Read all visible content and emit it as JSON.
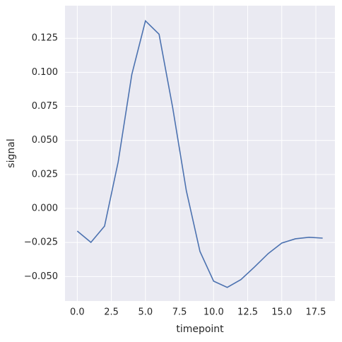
{
  "chart_data": {
    "type": "line",
    "x_label": "timepoint",
    "y_label": "signal",
    "x": [
      0,
      1,
      2,
      3,
      4,
      5,
      6,
      7,
      8,
      9,
      10,
      11,
      12,
      13,
      14,
      15,
      16,
      17,
      18
    ],
    "series": [
      {
        "color": "#4c72b0",
        "values": [
          -0.0166,
          -0.0249,
          -0.013,
          0.0342,
          0.0984,
          0.1378,
          0.128,
          0.074,
          0.013,
          -0.0316,
          -0.0534,
          -0.058,
          -0.0523,
          -0.043,
          -0.0332,
          -0.0254,
          -0.0223,
          -0.0212,
          -0.0218
        ]
      }
    ],
    "xlim": [
      -0.9,
      18.9
    ],
    "ylim": [
      -0.068,
      0.149
    ],
    "xticks": [
      {
        "value": 0,
        "label": "0.0"
      },
      2.5,
      {
        "value": 5,
        "label": "5.0"
      },
      7.5,
      {
        "value": 10,
        "label": "10.0"
      },
      12.5,
      {
        "value": 15,
        "label": "15.0"
      },
      17.5
    ],
    "yticks": [
      {
        "value": -0.05,
        "label": "−0.050"
      },
      {
        "value": -0.025,
        "label": "−0.025"
      },
      {
        "value": 0,
        "label": "0.000"
      },
      0.025,
      {
        "value": 0.05,
        "label": "0.050"
      },
      0.075,
      {
        "value": 0.1,
        "label": "0.100"
      },
      0.125
    ],
    "grid": true,
    "background": "#eaeaf2"
  }
}
